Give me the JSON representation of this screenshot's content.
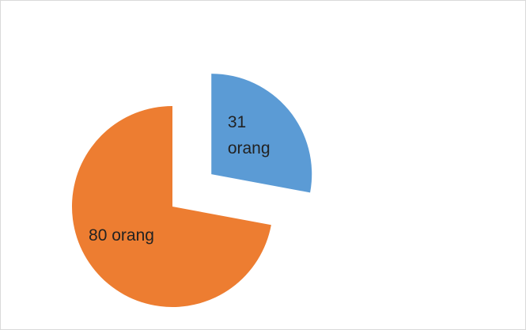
{
  "chart_data": {
    "type": "pie",
    "values": [
      31,
      80
    ],
    "value_labels": [
      "31 orang",
      "80 orang"
    ],
    "colors": [
      "#5b9bd5",
      "#ed7d31"
    ],
    "exploded": [
      true,
      false
    ],
    "start_angle": "top",
    "direction": "clockwise"
  }
}
